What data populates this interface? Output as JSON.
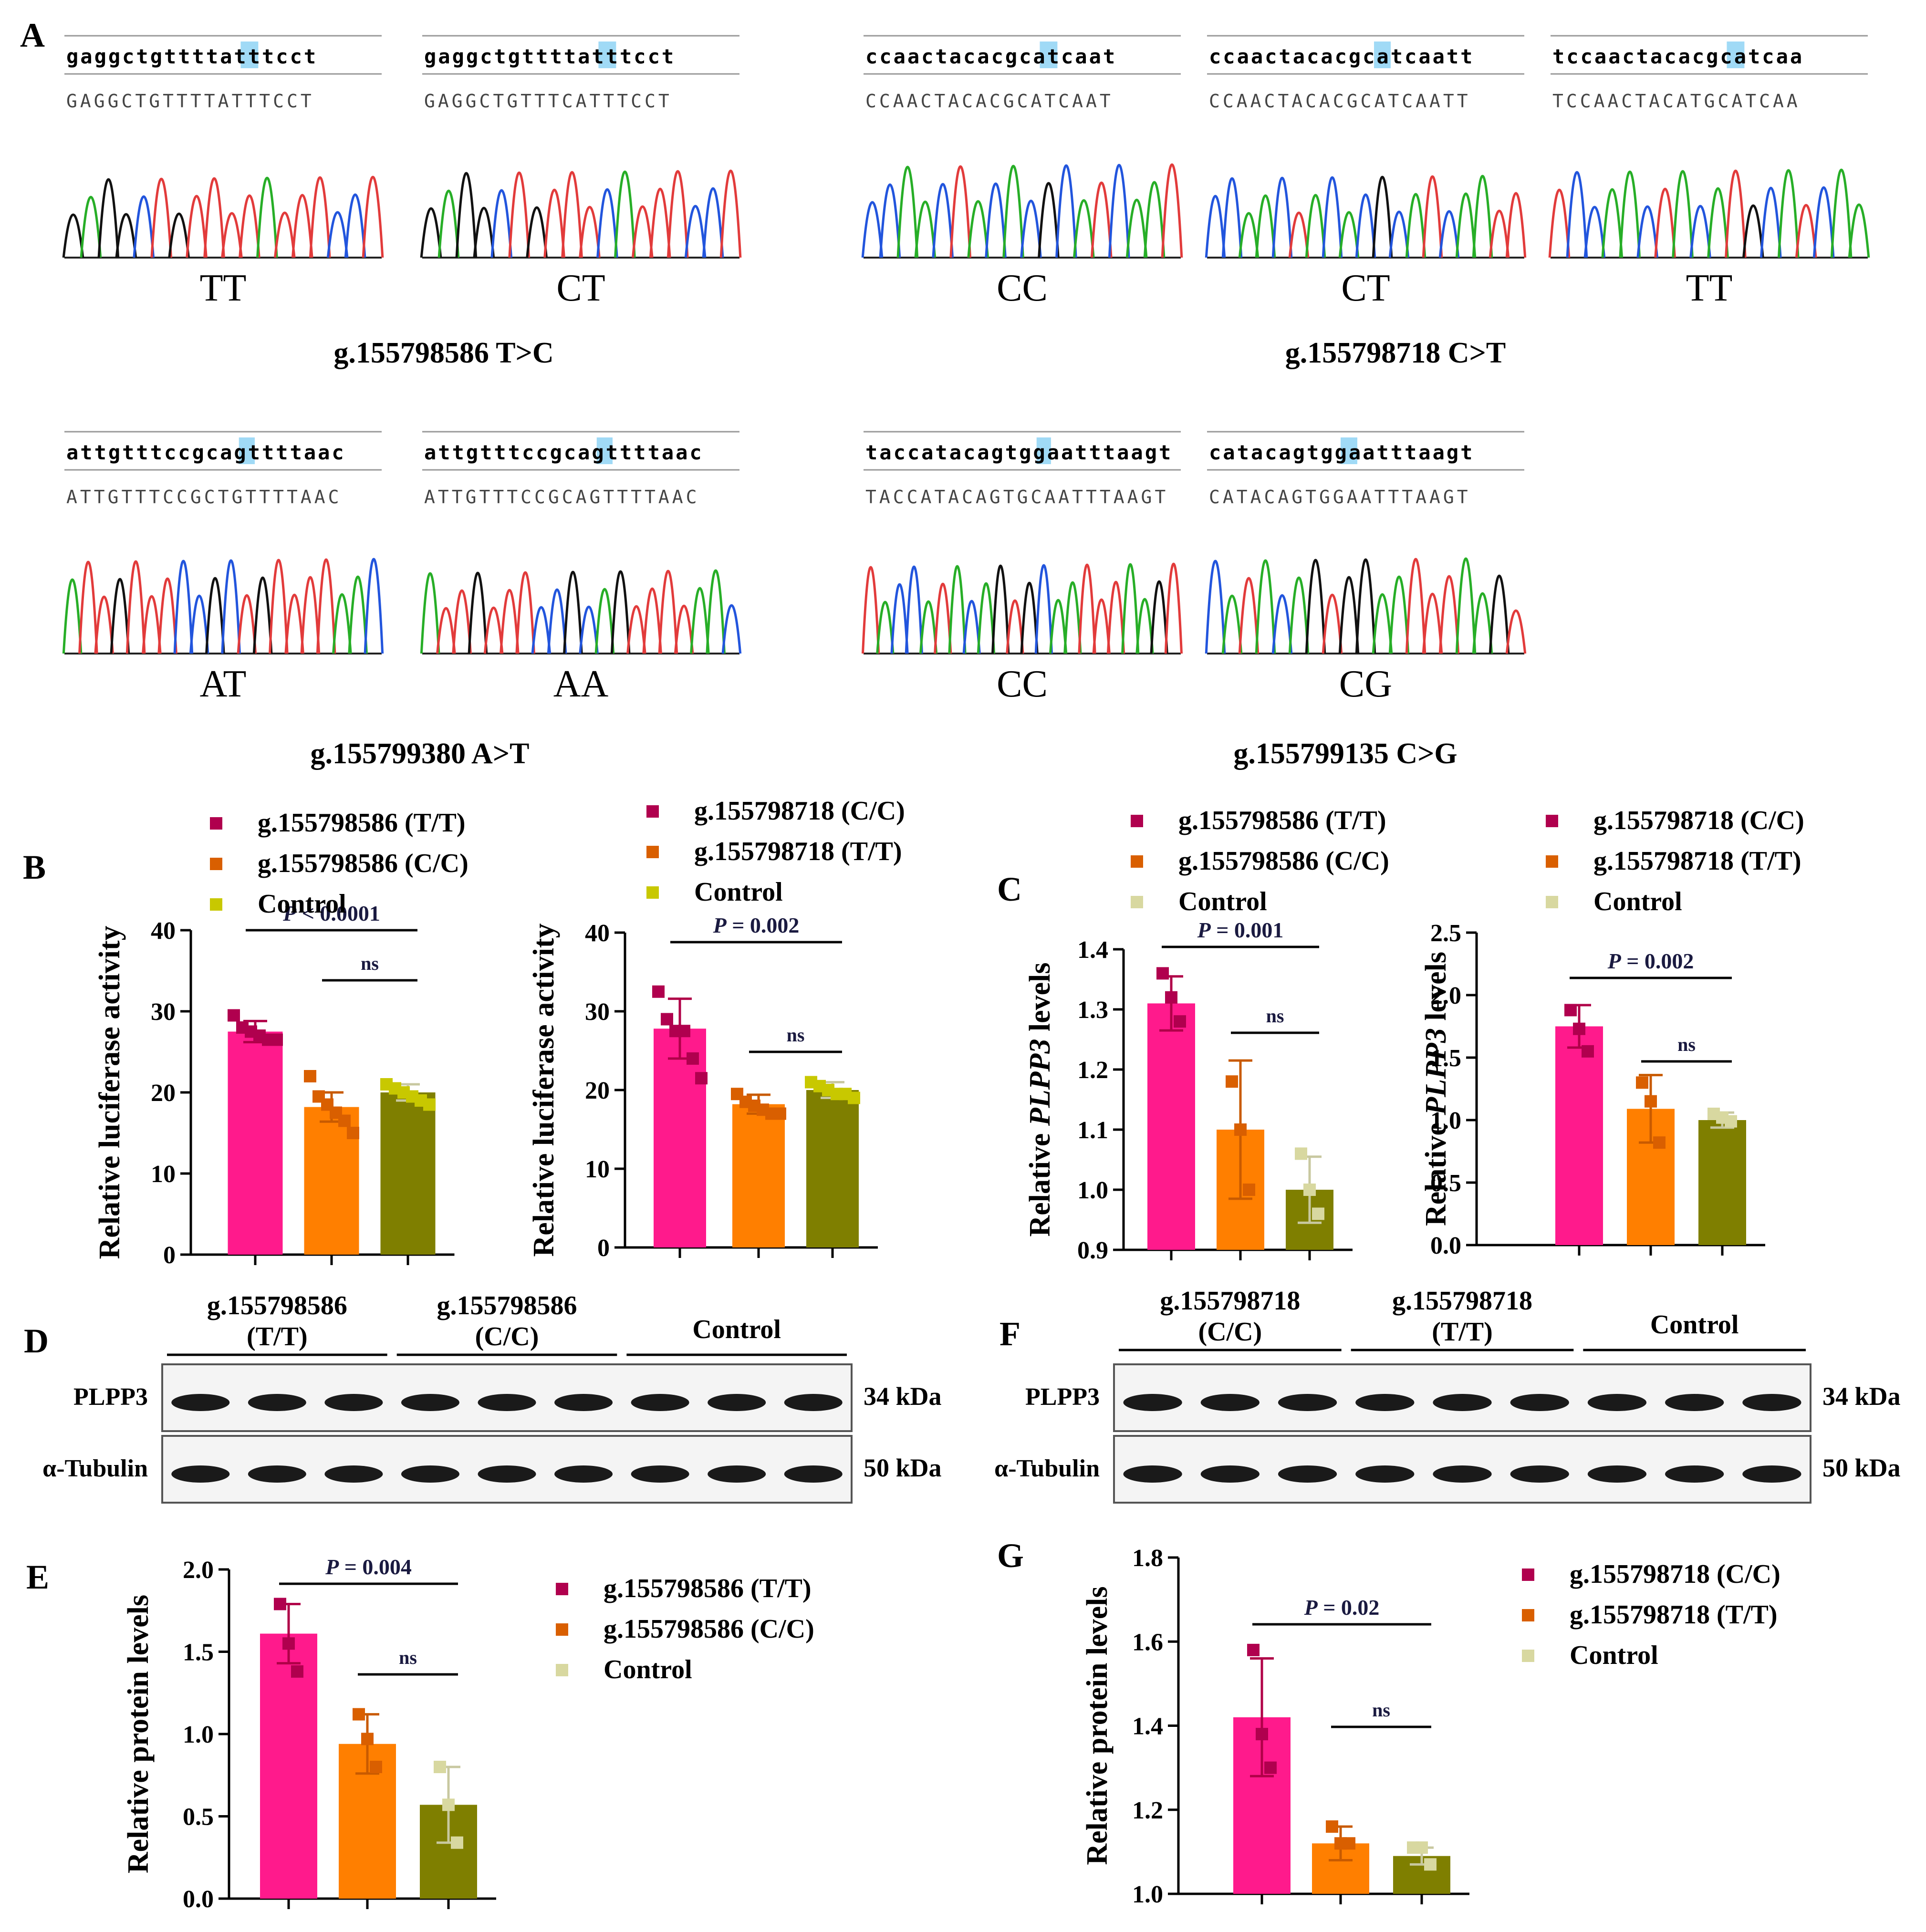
{
  "panel_letters": {
    "A": "A",
    "B": "B",
    "C": "C",
    "D": "D",
    "E": "E",
    "F": "F",
    "G": "G"
  },
  "sequencing": {
    "snps": [
      {
        "label": "g.155798586 T>C",
        "traces": [
          {
            "ref": "gaggctgttttatttcct",
            "read": "GAGGCTGTTTTATTTCCT",
            "genotype": "TT"
          },
          {
            "ref": "gaggctgttttatttcct",
            "read": "GAGGCTGTTTCATTTCCT",
            "genotype": "CT"
          }
        ]
      },
      {
        "label": "g.155798718 C>T",
        "traces": [
          {
            "ref": "ccaactacacgcatcaat",
            "read": "CCAACTACACGCATCAAT",
            "genotype": "CC"
          },
          {
            "ref": "ccaactacacgcatcaatt",
            "read": "CCAACTACACGCATCAATT",
            "genotype": "CT"
          },
          {
            "ref": "tccaactacacgcatcaa",
            "read": "TCCAACTACATGCATCAA",
            "genotype": "TT"
          }
        ]
      },
      {
        "label": "g.155799380 A>T",
        "traces": [
          {
            "ref": "attgtttccgcagttttaac",
            "read": "ATTGTTTCCGCTGTTTTAAC",
            "genotype": "AT"
          },
          {
            "ref": "attgtttccgcagttttaac",
            "read": "ATTGTTTCCGCAGTTTTAAC",
            "genotype": "AA"
          }
        ]
      },
      {
        "label": "g.155799135 C>G",
        "traces": [
          {
            "ref": "taccatacagtggaatttaagt",
            "read": "TACCATACAGTGCAATTTAAGT",
            "genotype": "CC"
          },
          {
            "ref": "catacagtggaatttaagt",
            "read": "CATACAGTGGAATTTAAGT",
            "genotype": "CG"
          }
        ]
      }
    ]
  },
  "colors": {
    "pink": "#ff1a8c",
    "orange": "#ff7f00",
    "olive": "#7f7f00",
    "olive_light": "#aaaa00",
    "beige": "#dadaa0",
    "dot_pink": "#b0004e",
    "dot_orange": "#d95f00",
    "dot_yellow": "#c8c800",
    "dot_beige": "#d8d8a0"
  },
  "chart_data": [
    {
      "id": "B1",
      "type": "bar",
      "ylabel": "Relative luciferase activity",
      "categories": [
        "g.155798586 (T/T)",
        "g.155798586 (C/C)",
        "Control"
      ],
      "legend": [
        "g.155798586 (T/T)",
        "g.155798586 (C/C)",
        "Control"
      ],
      "values": [
        27.5,
        18.2,
        20.0
      ],
      "errors": [
        1.3,
        1.8,
        1.0
      ],
      "ylim": [
        0,
        40
      ],
      "yticks": [
        "0",
        "10",
        "20",
        "30",
        "40"
      ],
      "points": [
        [
          29.5,
          28,
          27.5,
          27,
          26.5,
          26.5
        ],
        [
          22,
          19.5,
          18.5,
          17.5,
          16.5,
          15
        ],
        [
          21,
          20.5,
          20,
          19.5,
          19,
          18.5
        ]
      ],
      "sig": [
        {
          "text": "P < 0.0001",
          "from": 0,
          "to": 2
        },
        {
          "text": "ns",
          "from": 1,
          "to": 2
        }
      ]
    },
    {
      "id": "B2",
      "type": "bar",
      "ylabel": "Relative luciferase activity",
      "categories": [
        "g.155798718 (C/C)",
        "g.155798718 (T/T)",
        "Control"
      ],
      "legend": [
        "g.155798718 (C/C)",
        "g.155798718 (T/T)",
        "Control"
      ],
      "values": [
        27.8,
        18.2,
        20.0
      ],
      "errors": [
        3.8,
        1.2,
        1.0
      ],
      "ylim": [
        0,
        40
      ],
      "yticks": [
        "0",
        "10",
        "20",
        "30",
        "40"
      ],
      "points": [
        [
          32.5,
          29,
          27.5,
          27.5,
          24,
          21.5
        ],
        [
          19.5,
          18.5,
          18,
          17.5,
          17,
          17
        ],
        [
          21,
          20.5,
          20,
          19.5,
          19.5,
          19
        ]
      ],
      "sig": [
        {
          "text": "P = 0.002",
          "from": 0,
          "to": 2
        },
        {
          "text": "ns",
          "from": 1,
          "to": 2
        }
      ]
    },
    {
      "id": "C1",
      "type": "bar",
      "ylabel": "Relative PLPP3 levels",
      "categories": [
        "g.155798586 (T/T)",
        "g.155798586 (C/C)",
        "Control"
      ],
      "legend": [
        "g.155798586 (T/T)",
        "g.155798586 (C/C)",
        "Control"
      ],
      "values": [
        1.31,
        1.1,
        1.0
      ],
      "errors": [
        0.045,
        0.115,
        0.055
      ],
      "ylim": [
        0.9,
        1.4
      ],
      "yticks": [
        "0.9",
        "1.0",
        "1.1",
        "1.2",
        "1.3",
        "1.4"
      ],
      "points": [
        [
          1.36,
          1.32,
          1.28
        ],
        [
          1.18,
          1.1,
          1.0
        ],
        [
          1.06,
          1.0,
          0.96
        ]
      ],
      "sig": [
        {
          "text": "P = 0.001",
          "from": 0,
          "to": 2
        },
        {
          "text": "ns",
          "from": 1,
          "to": 2
        }
      ]
    },
    {
      "id": "C2",
      "type": "bar",
      "ylabel": "Relative PLPP3 levels",
      "categories": [
        "g.155798718 (C/C)",
        "g.155798718 (T/T)",
        "Control"
      ],
      "legend": [
        "g.155798718 (C/C)",
        "g.155798718 (T/T)",
        "Control"
      ],
      "values": [
        1.75,
        1.09,
        1.0
      ],
      "errors": [
        0.17,
        0.27,
        0.06
      ],
      "ylim": [
        0,
        2.5
      ],
      "yticks": [
        "0.0",
        "0.5",
        "1.0",
        "1.5",
        "2.0",
        "2.5"
      ],
      "points": [
        [
          1.88,
          1.73,
          1.55
        ],
        [
          1.3,
          1.15,
          0.82
        ],
        [
          1.05,
          1.02,
          0.99
        ]
      ],
      "sig": [
        {
          "text": "P = 0.002",
          "from": 0,
          "to": 2
        },
        {
          "text": "ns",
          "from": 1,
          "to": 2
        }
      ]
    },
    {
      "id": "E",
      "type": "bar",
      "ylabel": "Relative protein levels",
      "categories": [
        "g.155798586 (T/T)",
        "g.155798586 (C/C)",
        "Control"
      ],
      "legend": [
        "g.155798586 (T/T)",
        "g.155798586 (C/C)",
        "Control"
      ],
      "values": [
        1.61,
        0.94,
        0.57
      ],
      "errors": [
        0.18,
        0.18,
        0.23
      ],
      "ylim": [
        0,
        2.0
      ],
      "yticks": [
        "0.0",
        "0.5",
        "1.0",
        "1.5",
        "2.0"
      ],
      "points": [
        [
          1.79,
          1.55,
          1.38
        ],
        [
          1.12,
          0.97,
          0.8
        ],
        [
          0.8,
          0.57,
          0.34
        ]
      ],
      "sig": [
        {
          "text": "P = 0.004",
          "from": 0,
          "to": 2
        },
        {
          "text": "ns",
          "from": 1,
          "to": 2
        }
      ]
    },
    {
      "id": "G",
      "type": "bar",
      "ylabel": "Relative protein levels",
      "categories": [
        "g.155798718 (C/C)",
        "g.155798718 (T/T)",
        "Control"
      ],
      "legend": [
        "g.155798718 (C/C)",
        "g.155798718 (T/T)",
        "Control"
      ],
      "values": [
        1.42,
        1.12,
        1.09
      ],
      "errors": [
        0.14,
        0.04,
        0.02
      ],
      "ylim": [
        1.0,
        1.8
      ],
      "yticks": [
        "1.0",
        "1.2",
        "1.4",
        "1.6",
        "1.8"
      ],
      "points": [
        [
          1.58,
          1.38,
          1.3
        ],
        [
          1.16,
          1.12,
          1.12
        ],
        [
          1.11,
          1.11,
          1.07
        ]
      ],
      "sig": [
        {
          "text": "P = 0.02",
          "from": 0,
          "to": 2
        },
        {
          "text": "ns",
          "from": 1,
          "to": 2
        }
      ]
    }
  ],
  "western": {
    "D": {
      "groups": [
        {
          "l1": "g.155798586",
          "l2": "(T/T)"
        },
        {
          "l1": "g.155798586",
          "l2": "(C/C)"
        },
        {
          "l1": "Control",
          "l2": ""
        }
      ],
      "rows": [
        {
          "label": "PLPP3",
          "kda": "34 kDa"
        },
        {
          "label": "α-Tubulin",
          "kda": "50 kDa"
        }
      ]
    },
    "F": {
      "groups": [
        {
          "l1": "g.155798718",
          "l2": "(C/C)"
        },
        {
          "l1": "g.155798718",
          "l2": "(T/T)"
        },
        {
          "l1": "Control",
          "l2": ""
        }
      ],
      "rows": [
        {
          "label": "PLPP3",
          "kda": "34 kDa"
        },
        {
          "label": "α-Tubulin",
          "kda": "50 kDa"
        }
      ]
    }
  }
}
